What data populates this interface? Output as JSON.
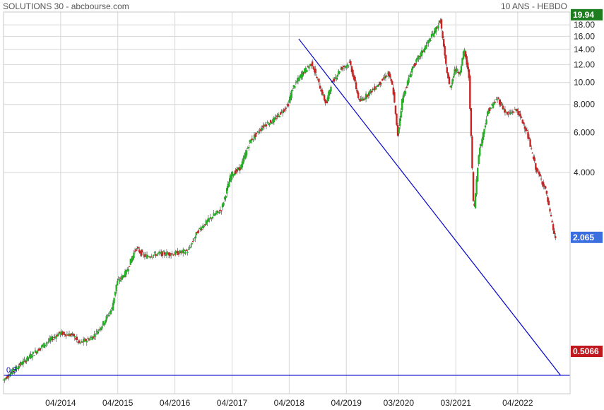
{
  "header": {
    "title": "SOLUTIONS 30 - abcbourse.com",
    "period": "10 ANS - HEBDO"
  },
  "chart_data": {
    "type": "candlestick",
    "y_scale": "log",
    "y_range": [
      0.42,
      20.5
    ],
    "y_ticks": [
      18.0,
      16.0,
      14.0,
      12.0,
      10.0,
      8.0,
      6.0,
      4.0
    ],
    "y_tick_labels": [
      "18.00",
      "16.00",
      "14.00",
      "12.00",
      "10.00",
      "8.000",
      "6.000",
      "4.000"
    ],
    "x_labels": [
      "04/2014",
      "04/2015",
      "04/2016",
      "04/2017",
      "04/2018",
      "04/2019",
      "03/2020",
      "03/2021",
      "04/2022"
    ],
    "x_label_dates": [
      "2014-04",
      "2015-04",
      "2016-04",
      "2017-04",
      "2018-04",
      "2019-04",
      "2020-03",
      "2021-03",
      "2022-04"
    ],
    "x_range": [
      "2013-04",
      "2023-03"
    ],
    "grid": true,
    "markers": {
      "high": {
        "label": "19.94",
        "value": 19.94,
        "color": "#1e7d1e"
      },
      "last": {
        "label": "2.065",
        "value": 2.065,
        "color": "#3b6fe0"
      },
      "level": {
        "label": "0.5066",
        "value": 0.5066,
        "color": "#c0181e"
      }
    },
    "annotations": [
      {
        "text": "0.5",
        "date": "2013-04",
        "value": 0.5066
      }
    ],
    "lines": [
      {
        "name": "horizontal",
        "color": "#0000cc",
        "points": [
          [
            "2013-04",
            0.5066
          ],
          [
            "2023-03",
            0.5066
          ]
        ]
      },
      {
        "name": "trend",
        "color": "#0000cc",
        "points": [
          [
            "2018-06",
            15.6
          ],
          [
            "2023-01",
            0.5066
          ]
        ]
      }
    ],
    "price_path": [
      [
        "2013-04",
        0.48
      ],
      [
        "2013-07",
        0.55
      ],
      [
        "2013-10",
        0.62
      ],
      [
        "2014-01",
        0.7
      ],
      [
        "2014-04",
        0.78
      ],
      [
        "2014-07",
        0.76
      ],
      [
        "2014-08",
        0.7
      ],
      [
        "2014-11",
        0.75
      ],
      [
        "2015-01",
        0.85
      ],
      [
        "2015-03",
        1.0
      ],
      [
        "2015-04",
        1.3
      ],
      [
        "2015-06",
        1.45
      ],
      [
        "2015-08",
        1.85
      ],
      [
        "2015-10",
        1.7
      ],
      [
        "2016-01",
        1.75
      ],
      [
        "2016-04",
        1.75
      ],
      [
        "2016-07",
        1.8
      ],
      [
        "2016-09",
        2.2
      ],
      [
        "2016-12",
        2.55
      ],
      [
        "2017-02",
        2.75
      ],
      [
        "2017-04",
        3.9
      ],
      [
        "2017-06",
        4.2
      ],
      [
        "2017-08",
        5.5
      ],
      [
        "2017-11",
        6.5
      ],
      [
        "2018-01",
        6.8
      ],
      [
        "2018-04",
        8.0
      ],
      [
        "2018-05",
        9.5
      ],
      [
        "2018-07",
        11.0
      ],
      [
        "2018-09",
        12.2
      ],
      [
        "2018-10",
        10.5
      ],
      [
        "2018-12",
        8.0
      ],
      [
        "2019-01",
        9.8
      ],
      [
        "2019-03",
        11.5
      ],
      [
        "2019-05",
        12.2
      ],
      [
        "2019-07",
        8.2
      ],
      [
        "2019-09",
        9.0
      ],
      [
        "2019-11",
        9.8
      ],
      [
        "2020-01",
        11.0
      ],
      [
        "2020-02",
        9.5
      ],
      [
        "2020-03",
        5.8
      ],
      [
        "2020-04",
        8.5
      ],
      [
        "2020-06",
        11.5
      ],
      [
        "2020-08",
        13.5
      ],
      [
        "2020-10",
        15.8
      ],
      [
        "2020-12",
        18.8
      ],
      [
        "2021-01",
        12.5
      ],
      [
        "2021-02",
        9.3
      ],
      [
        "2021-03",
        11.5
      ],
      [
        "2021-04",
        11.0
      ],
      [
        "2021-05",
        14.0
      ],
      [
        "2021-06",
        10.5
      ],
      [
        "2021-07",
        2.6
      ],
      [
        "2021-08",
        4.8
      ],
      [
        "2021-10",
        7.5
      ],
      [
        "2021-12",
        8.5
      ],
      [
        "2022-02",
        7.2
      ],
      [
        "2022-04",
        7.6
      ],
      [
        "2022-06",
        6.2
      ],
      [
        "2022-08",
        4.2
      ],
      [
        "2022-10",
        3.4
      ],
      [
        "2022-12",
        2.065
      ]
    ]
  }
}
